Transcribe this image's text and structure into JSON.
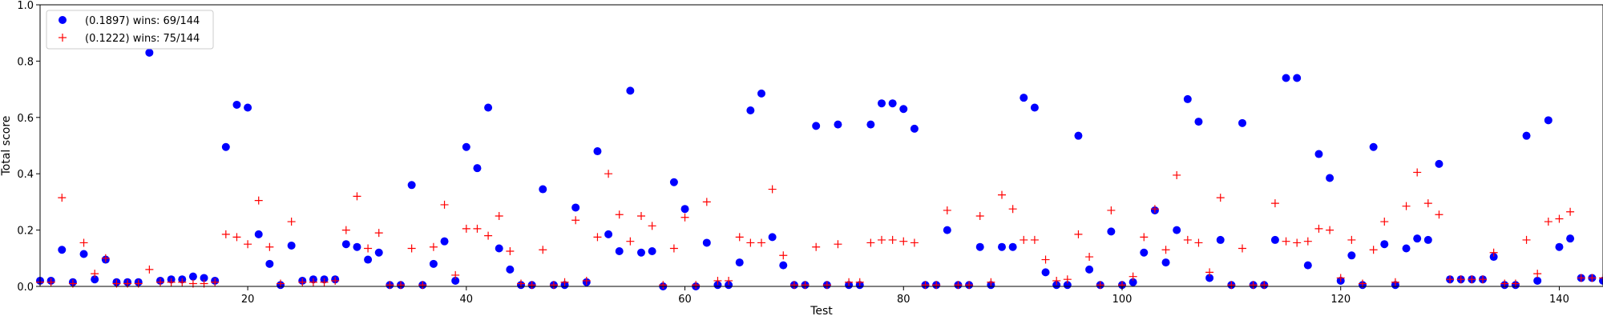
{
  "chart_data": {
    "type": "scatter",
    "xlabel": "Test",
    "ylabel": "Total score",
    "xlim": [
      1,
      144
    ],
    "ylim": [
      0,
      1.0
    ],
    "xticks": [
      20,
      40,
      60,
      80,
      100,
      120,
      140
    ],
    "yticks": [
      0.0,
      0.2,
      0.4,
      0.6,
      0.8,
      1.0
    ],
    "ytick_labels": [
      "0.0",
      "0.2",
      "0.4",
      "0.6",
      "0.8",
      "1.0"
    ],
    "grid": false,
    "legend_position": "top-left",
    "series": [
      {
        "name": "(0.1897) wins: 69/144",
        "marker": "circle",
        "color": "#0000ff",
        "x": [
          1,
          2,
          3,
          4,
          5,
          6,
          7,
          8,
          9,
          10,
          11,
          12,
          13,
          14,
          15,
          16,
          17,
          18,
          19,
          20,
          21,
          22,
          23,
          24,
          25,
          26,
          27,
          28,
          29,
          30,
          31,
          32,
          33,
          34,
          35,
          36,
          37,
          38,
          39,
          40,
          41,
          42,
          43,
          44,
          45,
          46,
          47,
          48,
          49,
          50,
          51,
          52,
          53,
          54,
          55,
          56,
          57,
          58,
          59,
          60,
          61,
          62,
          63,
          64,
          65,
          66,
          67,
          68,
          69,
          70,
          71,
          72,
          73,
          74,
          75,
          76,
          77,
          78,
          79,
          80,
          81,
          82,
          83,
          84,
          85,
          86,
          87,
          88,
          89,
          90,
          91,
          92,
          93,
          94,
          95,
          96,
          97,
          98,
          99,
          100,
          101,
          102,
          103,
          104,
          105,
          106,
          107,
          108,
          109,
          110,
          111,
          112,
          113,
          114,
          115,
          116,
          117,
          118,
          119,
          120,
          121,
          122,
          123,
          124,
          125,
          126,
          127,
          128,
          129,
          130,
          131,
          132,
          133,
          134,
          135,
          136,
          137,
          138,
          139,
          140,
          141,
          142,
          143,
          144
        ],
        "y": [
          0.02,
          0.02,
          0.13,
          0.015,
          0.115,
          0.025,
          0.095,
          0.015,
          0.015,
          0.015,
          0.83,
          0.02,
          0.025,
          0.025,
          0.035,
          0.03,
          0.02,
          0.495,
          0.645,
          0.635,
          0.185,
          0.08,
          0.005,
          0.145,
          0.02,
          0.025,
          0.025,
          0.025,
          0.15,
          0.14,
          0.095,
          0.12,
          0.005,
          0.005,
          0.36,
          0.005,
          0.08,
          0.16,
          0.02,
          0.495,
          0.42,
          0.635,
          0.135,
          0.06,
          0.005,
          0.005,
          0.345,
          0.005,
          0.005,
          0.28,
          0.015,
          0.48,
          0.185,
          0.125,
          0.695,
          0.12,
          0.125,
          0.0,
          0.37,
          0.275,
          0.0,
          0.155,
          0.005,
          0.005,
          0.085,
          0.625,
          0.685,
          0.175,
          0.075,
          0.005,
          0.005,
          0.57,
          0.005,
          0.575,
          0.005,
          0.005,
          0.575,
          0.65,
          0.65,
          0.63,
          0.56,
          0.005,
          0.005,
          0.2,
          0.005,
          0.005,
          0.14,
          0.005,
          0.14,
          0.14,
          0.67,
          0.635,
          0.05,
          0.005,
          0.005,
          0.535,
          0.06,
          0.005,
          0.195,
          0.005,
          0.015,
          0.12,
          0.27,
          0.085,
          0.2,
          0.665,
          0.585,
          0.03,
          0.165,
          0.005,
          0.58,
          0.005,
          0.005,
          0.165,
          0.74,
          0.74,
          0.075,
          0.47,
          0.385,
          0.02,
          0.11,
          0.005,
          0.495,
          0.15,
          0.005,
          0.135,
          0.17,
          0.165,
          0.435,
          0.025,
          0.025,
          0.025,
          0.025,
          0.105,
          0.005,
          0.005,
          0.535,
          0.02,
          0.59,
          0.14,
          0.17,
          0.03,
          0.03,
          0.02
        ]
      },
      {
        "name": "(0.1222) wins: 75/144",
        "marker": "plus",
        "color": "#ff0000",
        "x": [
          1,
          2,
          3,
          4,
          5,
          6,
          7,
          8,
          9,
          10,
          11,
          12,
          13,
          14,
          15,
          16,
          17,
          18,
          19,
          20,
          21,
          22,
          23,
          24,
          25,
          26,
          27,
          28,
          29,
          30,
          31,
          32,
          33,
          34,
          35,
          36,
          37,
          38,
          39,
          40,
          41,
          42,
          43,
          44,
          45,
          46,
          47,
          48,
          49,
          50,
          51,
          52,
          53,
          54,
          55,
          56,
          57,
          58,
          59,
          60,
          61,
          62,
          63,
          64,
          65,
          66,
          67,
          68,
          69,
          70,
          71,
          72,
          73,
          74,
          75,
          76,
          77,
          78,
          79,
          80,
          81,
          82,
          83,
          84,
          85,
          86,
          87,
          88,
          89,
          90,
          91,
          92,
          93,
          94,
          95,
          96,
          97,
          98,
          99,
          100,
          101,
          102,
          103,
          104,
          105,
          106,
          107,
          108,
          109,
          110,
          111,
          112,
          113,
          114,
          115,
          116,
          117,
          118,
          119,
          120,
          121,
          122,
          123,
          124,
          125,
          126,
          127,
          128,
          129,
          130,
          131,
          132,
          133,
          134,
          135,
          136,
          137,
          138,
          139,
          140,
          141,
          142,
          143,
          144
        ],
        "y": [
          0.015,
          0.015,
          0.315,
          0.01,
          0.155,
          0.045,
          0.1,
          0.01,
          0.01,
          0.01,
          0.06,
          0.015,
          0.015,
          0.015,
          0.01,
          0.01,
          0.015,
          0.185,
          0.175,
          0.15,
          0.305,
          0.14,
          0.01,
          0.23,
          0.015,
          0.015,
          0.015,
          0.02,
          0.2,
          0.32,
          0.135,
          0.19,
          0.005,
          0.005,
          0.135,
          0.005,
          0.14,
          0.29,
          0.04,
          0.205,
          0.205,
          0.18,
          0.25,
          0.125,
          0.01,
          0.005,
          0.13,
          0.005,
          0.015,
          0.235,
          0.02,
          0.175,
          0.4,
          0.255,
          0.16,
          0.25,
          0.215,
          0.005,
          0.135,
          0.245,
          0.005,
          0.3,
          0.02,
          0.02,
          0.175,
          0.155,
          0.155,
          0.345,
          0.11,
          0.005,
          0.005,
          0.14,
          0.005,
          0.15,
          0.015,
          0.015,
          0.155,
          0.165,
          0.165,
          0.16,
          0.155,
          0.005,
          0.005,
          0.27,
          0.005,
          0.005,
          0.25,
          0.015,
          0.325,
          0.275,
          0.165,
          0.165,
          0.095,
          0.02,
          0.025,
          0.185,
          0.105,
          0.005,
          0.27,
          0.005,
          0.035,
          0.175,
          0.275,
          0.13,
          0.395,
          0.165,
          0.155,
          0.05,
          0.315,
          0.005,
          0.135,
          0.005,
          0.005,
          0.295,
          0.16,
          0.155,
          0.16,
          0.205,
          0.2,
          0.03,
          0.165,
          0.01,
          0.13,
          0.23,
          0.015,
          0.285,
          0.405,
          0.295,
          0.255,
          0.025,
          0.025,
          0.025,
          0.025,
          0.12,
          0.01,
          0.01,
          0.165,
          0.045,
          0.23,
          0.24,
          0.265,
          0.03,
          0.03,
          0.03
        ]
      }
    ]
  }
}
